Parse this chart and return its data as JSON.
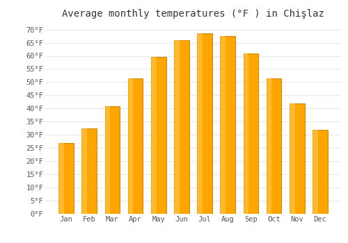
{
  "title": "Average monthly temperatures (°F ) in Chişlaz",
  "months": [
    "Jan",
    "Feb",
    "Mar",
    "Apr",
    "May",
    "Jun",
    "Jul",
    "Aug",
    "Sep",
    "Oct",
    "Nov",
    "Dec"
  ],
  "values": [
    27,
    32.5,
    41,
    51.5,
    59.5,
    66,
    68.5,
    67.5,
    61,
    51.5,
    42,
    32
  ],
  "bar_color": "#FFA500",
  "bar_edge_color": "#CC8800",
  "background_color": "#FFFFFF",
  "grid_color": "#E8E8E8",
  "text_color": "#555555",
  "ylim": [
    0,
    72
  ],
  "yticks": [
    0,
    5,
    10,
    15,
    20,
    25,
    30,
    35,
    40,
    45,
    50,
    55,
    60,
    65,
    70
  ],
  "ylabel_suffix": "°F",
  "title_fontsize": 10,
  "tick_fontsize": 7.5,
  "font_family": "monospace"
}
